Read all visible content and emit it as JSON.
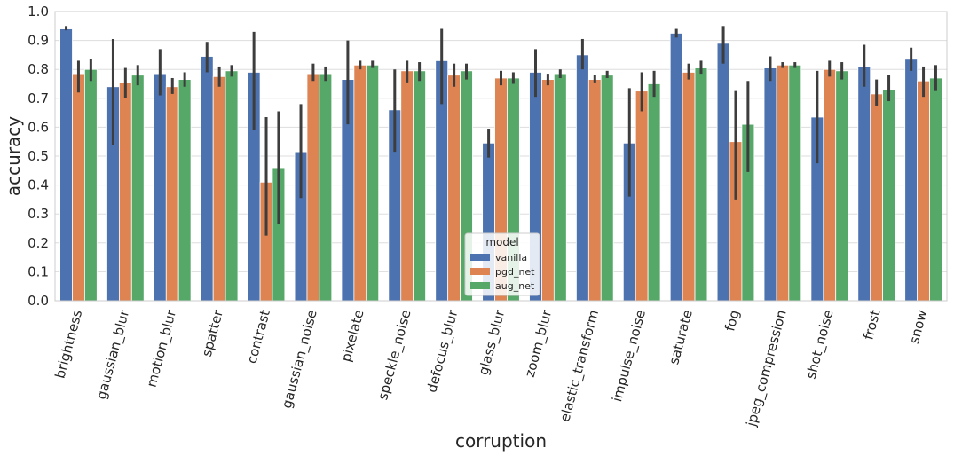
{
  "chart_data": {
    "type": "bar",
    "xlabel": "corruption",
    "ylabel": "accuracy",
    "ylim": [
      0,
      1.0
    ],
    "yticks": [
      "0.0",
      "0.1",
      "0.2",
      "0.3",
      "0.4",
      "0.5",
      "0.6",
      "0.7",
      "0.8",
      "0.9",
      "1.0"
    ],
    "grid": "horizontal",
    "legend": {
      "title": "model",
      "placement": "bottom-center"
    },
    "categories": [
      "brightness",
      "gaussian_blur",
      "motion_blur",
      "spatter",
      "contrast",
      "gaussian_noise",
      "pixelate",
      "speckle_noise",
      "defocus_blur",
      "glass_blur",
      "zoom_blur",
      "elastic_transform",
      "impulse_noise",
      "saturate",
      "fog",
      "jpeg_compression",
      "shot_noise",
      "frost",
      "snow"
    ],
    "series": [
      {
        "name": "vanilla",
        "color": "#4c72b0",
        "values": [
          0.94,
          0.74,
          0.785,
          0.845,
          0.79,
          0.515,
          0.765,
          0.66,
          0.83,
          0.545,
          0.79,
          0.85,
          0.545,
          0.925,
          0.89,
          0.805,
          0.635,
          0.81,
          0.835
        ],
        "err_low": [
          0.935,
          0.54,
          0.71,
          0.79,
          0.59,
          0.355,
          0.61,
          0.515,
          0.68,
          0.495,
          0.705,
          0.8,
          0.36,
          0.91,
          0.82,
          0.76,
          0.475,
          0.74,
          0.795
        ],
        "err_high": [
          0.95,
          0.905,
          0.87,
          0.895,
          0.93,
          0.68,
          0.9,
          0.8,
          0.94,
          0.595,
          0.87,
          0.905,
          0.735,
          0.94,
          0.95,
          0.845,
          0.795,
          0.885,
          0.875
        ]
      },
      {
        "name": "pgd_net",
        "color": "#dd8452",
        "values": [
          0.785,
          0.755,
          0.74,
          0.775,
          0.41,
          0.785,
          0.815,
          0.795,
          0.78,
          0.77,
          0.765,
          0.765,
          0.725,
          0.79,
          0.55,
          0.815,
          0.8,
          0.715,
          0.76
        ],
        "err_low": [
          0.72,
          0.7,
          0.715,
          0.74,
          0.225,
          0.76,
          0.8,
          0.755,
          0.74,
          0.745,
          0.745,
          0.755,
          0.655,
          0.765,
          0.35,
          0.805,
          0.775,
          0.675,
          0.705
        ],
        "err_high": [
          0.83,
          0.805,
          0.77,
          0.81,
          0.635,
          0.82,
          0.83,
          0.83,
          0.82,
          0.795,
          0.785,
          0.78,
          0.79,
          0.82,
          0.725,
          0.825,
          0.83,
          0.765,
          0.81
        ]
      },
      {
        "name": "aug_net",
        "color": "#55a868",
        "values": [
          0.8,
          0.78,
          0.765,
          0.795,
          0.46,
          0.785,
          0.815,
          0.795,
          0.795,
          0.77,
          0.785,
          0.78,
          0.75,
          0.805,
          0.61,
          0.815,
          0.795,
          0.73,
          0.77
        ],
        "err_low": [
          0.76,
          0.745,
          0.74,
          0.775,
          0.265,
          0.76,
          0.805,
          0.76,
          0.765,
          0.75,
          0.77,
          0.77,
          0.705,
          0.785,
          0.445,
          0.805,
          0.765,
          0.69,
          0.725
        ],
        "err_high": [
          0.835,
          0.815,
          0.79,
          0.815,
          0.655,
          0.81,
          0.83,
          0.825,
          0.82,
          0.79,
          0.8,
          0.795,
          0.795,
          0.83,
          0.76,
          0.825,
          0.825,
          0.78,
          0.815
        ]
      }
    ]
  }
}
